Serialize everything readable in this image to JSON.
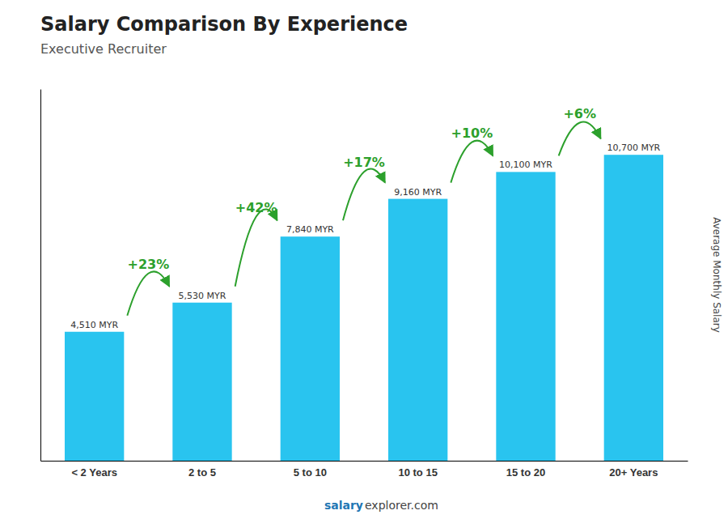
{
  "chart_data": {
    "type": "bar",
    "title": "Salary Comparison By Experience",
    "subtitle": "Executive Recruiter",
    "ylabel": "Average Monthly Salary",
    "categories": [
      "< 2 Years",
      "2 to 5",
      "5 to 10",
      "10 to 15",
      "15 to 20",
      "20+ Years"
    ],
    "values": [
      4510,
      5530,
      7840,
      9160,
      10100,
      10700
    ],
    "value_labels": [
      "4,510 MYR",
      "5,530 MYR",
      "7,840 MYR",
      "9,160 MYR",
      "10,100 MYR",
      "10,700 MYR"
    ],
    "data_labels": true,
    "annotations": [
      "+23%",
      "+42%",
      "+17%",
      "+10%",
      "+6%"
    ],
    "footer": [
      "salary",
      "explorer.com"
    ],
    "color": "#29c4ef",
    "ylim": [
      0,
      13000
    ],
    "tick_labels": "x",
    "grid": false
  }
}
